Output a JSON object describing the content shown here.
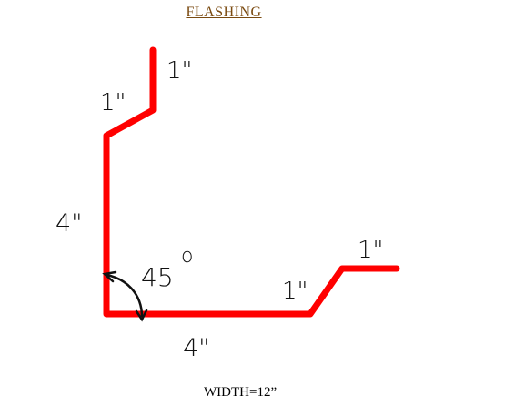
{
  "title": "FLASHING",
  "footer": {
    "width_label": "WIDTH=12”"
  },
  "dimensions": {
    "top_flange": "1\"",
    "top_bend": "1\"",
    "left_leg": "4\"",
    "bottom_leg": "4\"",
    "right_bend": "1\"",
    "right_flange": "1\""
  },
  "angle": {
    "value": "45",
    "degree_symbol": "o"
  },
  "colors": {
    "profile": "#ff0000",
    "arrow": "#111111",
    "title": "#7a4a10"
  }
}
